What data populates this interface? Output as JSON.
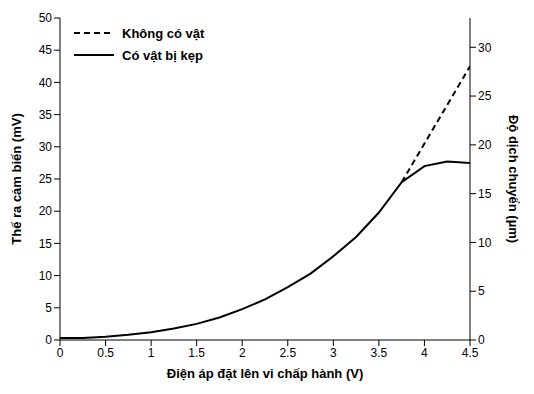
{
  "chart_data": {
    "type": "line",
    "xlabel": "Điện áp đặt lên vi chấp hành (V)",
    "ylabel": "Thế ra cảm biến (mV)",
    "y2label": "Độ dịch chuyển (µm)",
    "x": [
      0,
      0.25,
      0.5,
      0.75,
      1,
      1.25,
      1.5,
      1.75,
      2,
      2.25,
      2.5,
      2.75,
      3,
      3.25,
      3.5,
      3.75,
      4,
      4.25,
      4.5
    ],
    "series": [
      {
        "name": "Không có vật",
        "color": "#000000",
        "line_style": "dashed",
        "values": [
          null,
          null,
          null,
          null,
          null,
          null,
          null,
          null,
          null,
          null,
          null,
          null,
          null,
          null,
          null,
          24.5,
          30.5,
          36.5,
          42.5
        ]
      },
      {
        "name": "Có vật bị kẹp",
        "color": "#000000",
        "line_style": "solid",
        "values": [
          0.3,
          0.3,
          0.5,
          0.8,
          1.2,
          1.8,
          2.5,
          3.5,
          4.8,
          6.3,
          8.2,
          10.3,
          13,
          16,
          19.8,
          24.5,
          27,
          27.7,
          27.5
        ]
      }
    ],
    "xlim": [
      0,
      4.5
    ],
    "xticks": [
      0,
      0.5,
      1,
      1.5,
      2,
      2.5,
      3,
      3.5,
      4,
      4.5
    ],
    "ylim": [
      0,
      50
    ],
    "yticks": [
      0,
      5,
      10,
      15,
      20,
      25,
      30,
      35,
      40,
      45,
      50
    ],
    "y2lim": [
      0,
      33
    ],
    "y2ticks": [
      0,
      5,
      10,
      15,
      20,
      25,
      30
    ],
    "legend": "upper left",
    "grid": false
  }
}
